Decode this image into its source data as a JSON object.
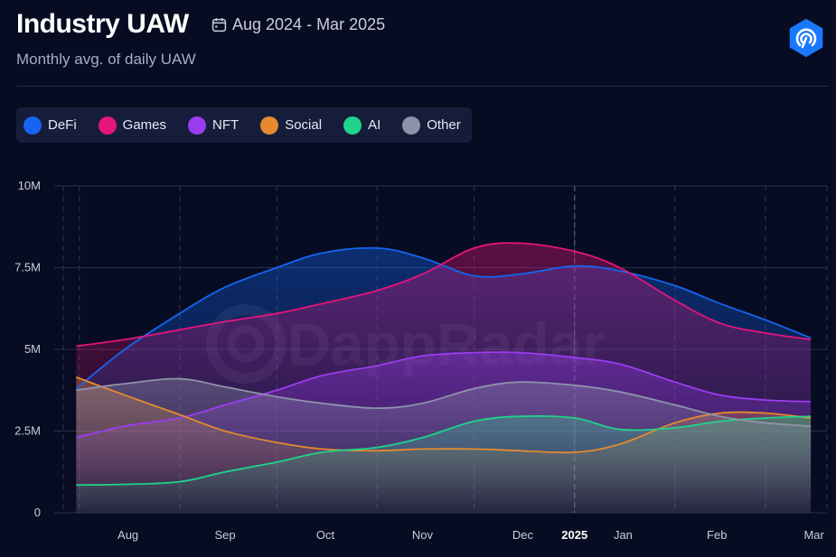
{
  "header": {
    "title": "Industry UAW",
    "date_range": "Aug 2024 - Mar 2025",
    "subtitle": "Monthly avg. of daily UAW"
  },
  "watermark": "DappRadar",
  "legend": [
    {
      "name": "DeFi",
      "color": "#1565f0"
    },
    {
      "name": "Games",
      "color": "#e5157a"
    },
    {
      "name": "NFT",
      "color": "#9b3cf0"
    },
    {
      "name": "Social",
      "color": "#e58a2e"
    },
    {
      "name": "AI",
      "color": "#1fd38a"
    },
    {
      "name": "Other",
      "color": "#8e93aa"
    }
  ],
  "chart_data": {
    "type": "area",
    "title": "Industry UAW",
    "subtitle": "Monthly avg. of daily UAW",
    "x_ticks": [
      "Aug",
      "Sep",
      "Oct",
      "Nov",
      "Dec",
      "2025",
      "Jan",
      "Feb",
      "Mar"
    ],
    "x_tick_bold": "2025",
    "y_ticks": [
      "0",
      "2.5M",
      "5M",
      "7.5M",
      "10M"
    ],
    "ylim": [
      0,
      10000000
    ],
    "x_dates": [
      "2024-07-31",
      "2024-08-15",
      "2024-09-01",
      "2024-09-15",
      "2024-10-01",
      "2024-10-15",
      "2024-11-01",
      "2024-11-15",
      "2024-12-01",
      "2024-12-15",
      "2025-01-01",
      "2025-01-15",
      "2025-02-01",
      "2025-02-15",
      "2025-03-01",
      "2025-03-15"
    ],
    "grid": true,
    "legend_position": "top-left",
    "series": [
      {
        "name": "DeFi",
        "color": "#1565f0",
        "values": [
          3800000,
          5000000,
          6100000,
          6900000,
          7500000,
          7950000,
          8100000,
          7800000,
          7250000,
          7300000,
          7550000,
          7400000,
          6950000,
          6400000,
          5900000,
          5350000
        ]
      },
      {
        "name": "Games",
        "color": "#e5157a",
        "values": [
          5100000,
          5300000,
          5600000,
          5850000,
          6100000,
          6400000,
          6800000,
          7300000,
          8100000,
          8250000,
          8000000,
          7500000,
          6500000,
          5800000,
          5500000,
          5300000
        ]
      },
      {
        "name": "NFT",
        "color": "#9b3cf0",
        "values": [
          2300000,
          2650000,
          2900000,
          3300000,
          3750000,
          4200000,
          4500000,
          4800000,
          4900000,
          4900000,
          4750000,
          4550000,
          4000000,
          3600000,
          3450000,
          3400000
        ]
      },
      {
        "name": "Social",
        "color": "#e58a2e",
        "values": [
          4150000,
          3600000,
          3000000,
          2500000,
          2150000,
          1950000,
          1900000,
          1950000,
          1950000,
          1900000,
          1850000,
          2100000,
          2750000,
          3050000,
          3050000,
          2900000
        ]
      },
      {
        "name": "AI",
        "color": "#1fd38a",
        "values": [
          850000,
          870000,
          950000,
          1250000,
          1550000,
          1850000,
          2000000,
          2300000,
          2800000,
          2950000,
          2900000,
          2550000,
          2600000,
          2800000,
          2900000,
          2950000
        ]
      },
      {
        "name": "Other",
        "color": "#8e93aa",
        "values": [
          3750000,
          3950000,
          4100000,
          3850000,
          3550000,
          3350000,
          3200000,
          3350000,
          3800000,
          4000000,
          3900000,
          3700000,
          3300000,
          2950000,
          2750000,
          2650000
        ]
      }
    ]
  }
}
